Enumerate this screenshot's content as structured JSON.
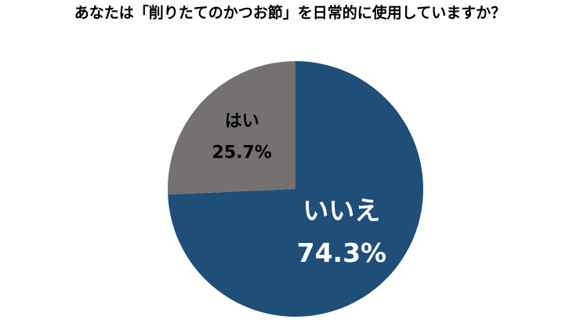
{
  "chart_data": {
    "type": "pie",
    "title": "あなたは「削りたてのかつお節」を日常的に使用していますか？",
    "categories": [
      "いいえ",
      "はい"
    ],
    "values": [
      74.3,
      25.7
    ],
    "value_labels": [
      "74.3%",
      "25.7%"
    ],
    "colors": [
      "#1f4e79",
      "#767171"
    ]
  }
}
